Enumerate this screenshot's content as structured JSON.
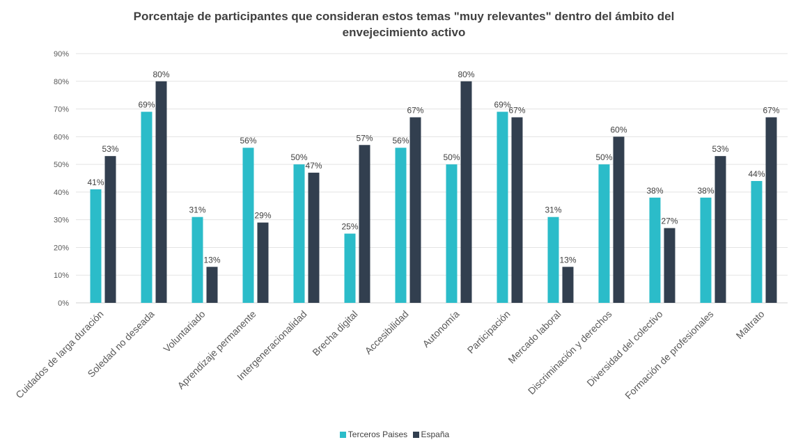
{
  "chart_data": {
    "type": "bar",
    "title_line1": "Porcentaje de participantes que consideran estos temas \"muy relevantes\" dentro del ámbito del",
    "title_line2": "envejecimiento activo",
    "categories": [
      "Cuidados de larga duración",
      "Soledad no deseada",
      "Voluntariado",
      "Aprendizaje permanente",
      "Intergeneracionalidad",
      "Brecha digital",
      "Accesibilidad",
      "Autonomía",
      "Participación",
      "Mercado laboral",
      "Discriminación y derechos",
      "Diversidad del colectivo",
      "Formación de profesionales",
      "Maltrato"
    ],
    "series": [
      {
        "name": "Terceros Paises",
        "color": "#2bbcc9",
        "values": [
          41,
          69,
          31,
          56,
          50,
          25,
          56,
          50,
          69,
          31,
          50,
          38,
          38,
          44
        ],
        "labels": [
          "41%",
          "69%",
          "31%",
          "56%",
          "50%",
          "25%",
          "56%",
          "50%",
          "69%",
          "31%",
          "50%",
          "38%",
          "38%",
          "44%"
        ]
      },
      {
        "name": "España",
        "color": "#323f4f",
        "values": [
          53,
          80,
          13,
          29,
          47,
          57,
          67,
          80,
          67,
          13,
          60,
          27,
          53,
          67
        ],
        "labels": [
          "53%",
          "80%",
          "13%",
          "29%",
          "47%",
          "57%",
          "67%",
          "80%",
          "67%",
          "13%",
          "60%",
          "27%",
          "53%",
          "67%"
        ]
      }
    ],
    "y_ticks": [
      "0%",
      "10%",
      "20%",
      "30%",
      "40%",
      "50%",
      "60%",
      "70%",
      "80%",
      "90%"
    ],
    "ylim": [
      0,
      90
    ],
    "grid": true,
    "legend_position": "bottom"
  }
}
